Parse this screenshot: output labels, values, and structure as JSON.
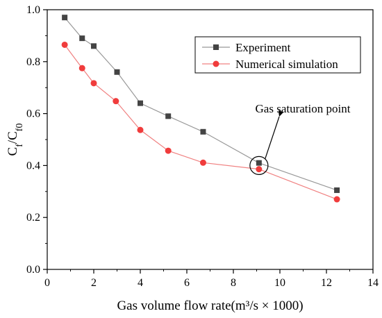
{
  "chart_data": {
    "type": "line",
    "xlabel": "Gas volume flow rate(m³/s × 1000)",
    "ylabel": "Cf/Cf0",
    "ylabel_parts": {
      "main1": "C",
      "sub1": "f",
      "slash": "/C",
      "sub2": "f0"
    },
    "xlim": [
      0,
      14
    ],
    "ylim": [
      0.0,
      1.0
    ],
    "x_ticks": [
      0,
      2,
      4,
      6,
      8,
      10,
      12,
      14
    ],
    "y_ticks": [
      0.0,
      0.2,
      0.4,
      0.6,
      0.8,
      1.0
    ],
    "x_tick_labels": [
      "0",
      "2",
      "4",
      "6",
      "8",
      "10",
      "12",
      "14"
    ],
    "y_tick_labels": [
      "0.0",
      "0.2",
      "0.4",
      "0.6",
      "0.8",
      "1.0"
    ],
    "grid": false,
    "legend_position": "top-right",
    "series": [
      {
        "name": "Experiment",
        "marker": "square",
        "marker_color": "#444444",
        "line_color": "#999999",
        "x": [
          0.75,
          1.5,
          2.0,
          3.0,
          4.0,
          5.2,
          6.7,
          9.1,
          12.45
        ],
        "y": [
          0.97,
          0.89,
          0.86,
          0.76,
          0.64,
          0.59,
          0.53,
          0.41,
          0.305
        ]
      },
      {
        "name": "Numerical simulation",
        "marker": "circle",
        "marker_color": "#f03c3c",
        "line_color": "#f08080",
        "x": [
          0.75,
          1.5,
          2.0,
          2.95,
          4.0,
          5.2,
          6.7,
          9.1,
          12.45
        ],
        "y": [
          0.865,
          0.775,
          0.717,
          0.648,
          0.537,
          0.457,
          0.411,
          0.386,
          0.27
        ]
      }
    ],
    "annotation": {
      "text": "Gas saturation point",
      "target": {
        "x": 9.1,
        "y": 0.4
      }
    }
  }
}
